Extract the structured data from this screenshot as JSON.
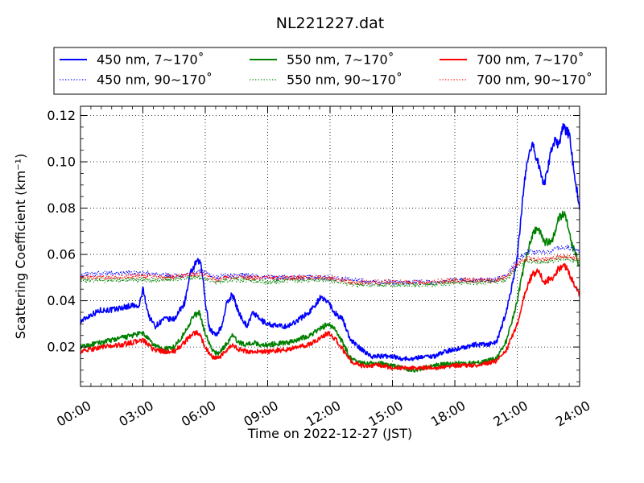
{
  "chart_data": {
    "type": "line",
    "title": "NL221227.dat",
    "xlabel": "Time on 2022-12-27 (JST)",
    "ylabel": "Scattering Coefficient (km⁻¹)",
    "xlim": [
      0,
      24
    ],
    "ylim": [
      0.003,
      0.124
    ],
    "x_ticks": [
      "00:00",
      "03:00",
      "06:00",
      "09:00",
      "12:00",
      "15:00",
      "18:00",
      "21:00",
      "24:00"
    ],
    "y_ticks": [
      "0.02",
      "0.04",
      "0.06",
      "0.08",
      "0.10",
      "0.12"
    ],
    "grid": true,
    "legend_placement": "top",
    "x_unit": "hours since 00:00",
    "series": [
      {
        "name": "450 nm, 7∼170˚",
        "color": "#0000ff",
        "style": "solid",
        "x": [
          0,
          0.5,
          1,
          1.5,
          2,
          2.5,
          2.8,
          3,
          3.3,
          3.6,
          4,
          4.5,
          5,
          5.3,
          5.6,
          5.8,
          6,
          6.2,
          6.5,
          6.8,
          7,
          7.3,
          7.6,
          8,
          8.3,
          8.6,
          9,
          9.5,
          10,
          10.5,
          11,
          11.5,
          11.9,
          12.2,
          12.6,
          13,
          13.5,
          14,
          14.5,
          15,
          15.5,
          16,
          16.5,
          17,
          17.5,
          18,
          18.5,
          19,
          19.5,
          20,
          20.3,
          20.6,
          21,
          21.3,
          21.5,
          21.7,
          22,
          22.3,
          22.6,
          22.8,
          23,
          23.2,
          23.5,
          23.7,
          24
        ],
        "values": [
          0.031,
          0.034,
          0.036,
          0.036,
          0.037,
          0.038,
          0.037,
          0.045,
          0.033,
          0.029,
          0.032,
          0.032,
          0.039,
          0.052,
          0.057,
          0.056,
          0.04,
          0.028,
          0.025,
          0.029,
          0.038,
          0.043,
          0.035,
          0.029,
          0.035,
          0.032,
          0.03,
          0.029,
          0.029,
          0.032,
          0.035,
          0.041,
          0.04,
          0.035,
          0.032,
          0.023,
          0.019,
          0.016,
          0.016,
          0.016,
          0.015,
          0.015,
          0.016,
          0.016,
          0.018,
          0.019,
          0.02,
          0.021,
          0.021,
          0.022,
          0.03,
          0.04,
          0.058,
          0.088,
          0.1,
          0.108,
          0.1,
          0.09,
          0.103,
          0.109,
          0.107,
          0.115,
          0.112,
          0.098,
          0.08
        ]
      },
      {
        "name": "550 nm, 7∼170˚",
        "color": "#008000",
        "style": "solid",
        "x": [
          0,
          1,
          2,
          3,
          3.5,
          4,
          4.5,
          5,
          5.4,
          5.7,
          6,
          6.3,
          6.6,
          7,
          7.3,
          7.6,
          8,
          8.3,
          8.6,
          9,
          10,
          11,
          11.9,
          12.3,
          12.6,
          13,
          13.5,
          14,
          14.5,
          15,
          15.5,
          16,
          16.5,
          17,
          18,
          19,
          20,
          20.5,
          21,
          21.4,
          21.7,
          22,
          22.3,
          22.7,
          23,
          23.3,
          23.6,
          24
        ],
        "values": [
          0.02,
          0.022,
          0.024,
          0.026,
          0.021,
          0.019,
          0.02,
          0.026,
          0.033,
          0.035,
          0.026,
          0.019,
          0.017,
          0.021,
          0.025,
          0.022,
          0.021,
          0.022,
          0.021,
          0.021,
          0.022,
          0.025,
          0.03,
          0.027,
          0.022,
          0.015,
          0.013,
          0.013,
          0.013,
          0.012,
          0.011,
          0.01,
          0.011,
          0.012,
          0.013,
          0.013,
          0.015,
          0.023,
          0.04,
          0.058,
          0.068,
          0.072,
          0.065,
          0.066,
          0.076,
          0.078,
          0.065,
          0.055
        ]
      },
      {
        "name": "700 nm, 7∼170˚",
        "color": "#ff0000",
        "style": "solid",
        "x": [
          0,
          1,
          2,
          3,
          3.5,
          4,
          4.5,
          5,
          5.4,
          5.7,
          6,
          6.3,
          6.6,
          7,
          7.3,
          7.6,
          8,
          8.5,
          9,
          10,
          11,
          11.9,
          12.3,
          12.6,
          13,
          13.5,
          14,
          14.5,
          15,
          15.5,
          16,
          16.5,
          17,
          18,
          19,
          20,
          20.5,
          21,
          21.4,
          21.7,
          22,
          22.3,
          22.7,
          23,
          23.3,
          23.6,
          24
        ],
        "values": [
          0.018,
          0.02,
          0.021,
          0.023,
          0.019,
          0.018,
          0.018,
          0.022,
          0.026,
          0.026,
          0.02,
          0.016,
          0.015,
          0.018,
          0.021,
          0.019,
          0.018,
          0.018,
          0.018,
          0.019,
          0.021,
          0.026,
          0.023,
          0.019,
          0.014,
          0.012,
          0.012,
          0.012,
          0.011,
          0.011,
          0.011,
          0.011,
          0.011,
          0.012,
          0.012,
          0.014,
          0.019,
          0.03,
          0.044,
          0.051,
          0.053,
          0.048,
          0.05,
          0.054,
          0.055,
          0.05,
          0.042
        ]
      },
      {
        "name": "450 nm, 90∼170˚",
        "color": "#0000ff",
        "style": "dotted",
        "x": [
          0,
          1,
          2,
          3,
          4,
          5,
          5.8,
          6.5,
          7,
          8,
          9,
          10,
          11,
          12,
          13,
          14,
          15,
          16,
          17,
          18,
          19,
          20,
          20.6,
          21,
          21.5,
          22,
          22.5,
          23,
          23.5,
          24
        ],
        "values": [
          0.051,
          0.052,
          0.052,
          0.052,
          0.051,
          0.051,
          0.053,
          0.05,
          0.051,
          0.051,
          0.05,
          0.05,
          0.05,
          0.05,
          0.049,
          0.048,
          0.048,
          0.048,
          0.048,
          0.049,
          0.049,
          0.049,
          0.052,
          0.058,
          0.061,
          0.061,
          0.061,
          0.063,
          0.063,
          0.061
        ]
      },
      {
        "name": "550 nm, 90∼170˚",
        "color": "#008000",
        "style": "dotted",
        "x": [
          0,
          1,
          2,
          3,
          4,
          5,
          5.8,
          6.5,
          7,
          8,
          9,
          10,
          11,
          12,
          13,
          14,
          15,
          16,
          17,
          18,
          19,
          20,
          20.6,
          21,
          21.5,
          22,
          22.5,
          23,
          23.5,
          24
        ],
        "values": [
          0.049,
          0.049,
          0.049,
          0.049,
          0.049,
          0.05,
          0.05,
          0.048,
          0.049,
          0.049,
          0.048,
          0.049,
          0.049,
          0.049,
          0.047,
          0.047,
          0.047,
          0.047,
          0.047,
          0.048,
          0.048,
          0.048,
          0.05,
          0.055,
          0.057,
          0.057,
          0.057,
          0.058,
          0.058,
          0.057
        ]
      },
      {
        "name": "700 nm, 90∼170˚",
        "color": "#ff0000",
        "style": "dotted",
        "x": [
          0,
          1,
          2,
          3,
          4,
          5,
          5.8,
          6.5,
          7,
          8,
          9,
          10,
          11,
          12,
          13,
          14,
          15,
          16,
          17,
          18,
          19,
          20,
          20.6,
          21,
          21.5,
          22,
          22.5,
          23,
          23.5,
          24
        ],
        "values": [
          0.05,
          0.05,
          0.05,
          0.051,
          0.05,
          0.051,
          0.052,
          0.049,
          0.05,
          0.05,
          0.05,
          0.05,
          0.05,
          0.05,
          0.048,
          0.048,
          0.048,
          0.048,
          0.048,
          0.049,
          0.049,
          0.049,
          0.051,
          0.056,
          0.058,
          0.058,
          0.058,
          0.059,
          0.059,
          0.058
        ]
      }
    ]
  }
}
